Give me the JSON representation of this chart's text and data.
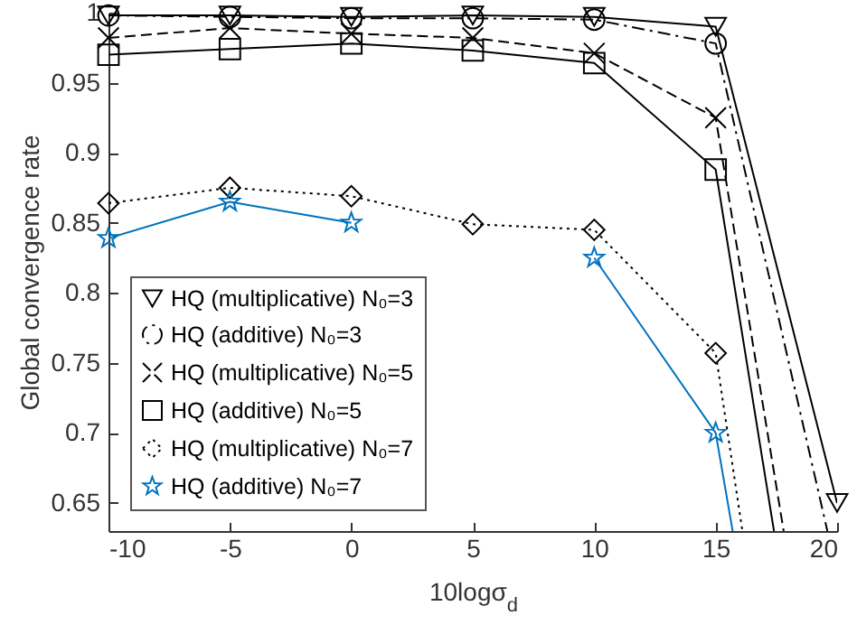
{
  "chart_data": {
    "type": "line",
    "xlabel": "10logσ$_{d}$",
    "ylabel": "Global convergence rate",
    "xlim": [
      -10,
      20
    ],
    "xticks": [
      -10,
      -5,
      0,
      5,
      10,
      15,
      20
    ],
    "ylim": [
      0.63,
      1
    ],
    "yticks": [
      0.65,
      0.7,
      0.75,
      0.8,
      0.85,
      0.9,
      0.95,
      1
    ],
    "legend": "bottom left",
    "grid": false,
    "series": [
      {
        "name": "HQ (multiplicative) N₀=3",
        "color": "#000000",
        "line_style": "solid",
        "marker": "triangle",
        "x": [
          -10,
          -5,
          0,
          5,
          10,
          15,
          20
        ],
        "values": [
          0.998,
          0.998,
          0.997,
          0.998,
          0.997,
          0.99,
          0.65
        ]
      },
      {
        "name": "HQ (additive) N₀=3",
        "color": "#000000",
        "line_style": "dashdot",
        "marker": "circle",
        "x": [
          -10,
          -5,
          0,
          5,
          10,
          15,
          19.6
        ],
        "values": [
          0.998,
          0.997,
          0.996,
          0.996,
          0.995,
          0.978,
          0.63
        ]
      },
      {
        "name": "HQ (multiplicative) N₀=5",
        "color": "#000000",
        "line_style": "dashed",
        "marker": "cross",
        "x": [
          -10,
          -5,
          0,
          5,
          10,
          15,
          17.8
        ],
        "values": [
          0.982,
          0.989,
          0.985,
          0.982,
          0.971,
          0.925,
          0.63
        ]
      },
      {
        "name": "HQ (additive) N₀=5",
        "color": "#000000",
        "line_style": "solid",
        "marker": "square",
        "x": [
          -10,
          -5,
          0,
          5,
          10,
          15,
          17.4
        ],
        "values": [
          0.97,
          0.974,
          0.978,
          0.973,
          0.964,
          0.888,
          0.63
        ]
      },
      {
        "name": "HQ (multiplicative) N₀=7",
        "color": "#000000",
        "line_style": "dotted",
        "marker": "diamond",
        "x": [
          -10,
          -5,
          0,
          5,
          10,
          15,
          16.1
        ],
        "values": [
          0.864,
          0.875,
          0.869,
          0.849,
          0.845,
          0.757,
          0.63
        ]
      },
      {
        "name": "HQ (additive) N₀=7",
        "color": "#0072bd",
        "line_style": "solid",
        "marker": "star",
        "x": [
          -10,
          -5,
          0,
          5,
          10,
          15,
          15.7
        ],
        "values": [
          0.839,
          0.865,
          0.85,
          null,
          0.825,
          0.7,
          0.63
        ]
      }
    ]
  }
}
